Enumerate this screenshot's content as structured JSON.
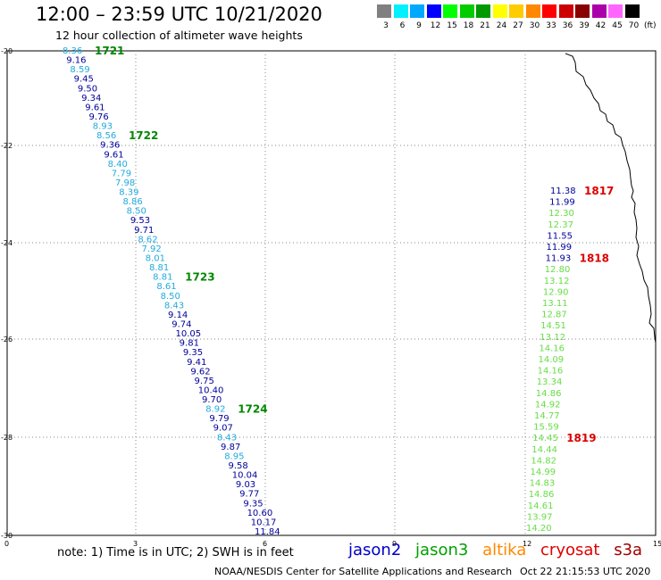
{
  "title": "12:00 – 23:59 UTC 10/21/2020",
  "subtitle": "12 hour collection of altimeter wave heights",
  "legend": {
    "labels": [
      "3",
      "6",
      "9",
      "12",
      "15",
      "18",
      "21",
      "24",
      "27",
      "30",
      "33",
      "36",
      "39",
      "42",
      "45",
      "70"
    ],
    "colors": [
      "#808080",
      "#00f0ff",
      "#00a8ff",
      "#0000ff",
      "#00ff00",
      "#00cc00",
      "#009900",
      "#ffff00",
      "#ffcc00",
      "#ff8800",
      "#ff0000",
      "#cc0000",
      "#880000",
      "#aa00aa",
      "#ff66ff",
      "#000000"
    ],
    "unit": "(ft)"
  },
  "axes": {
    "x_ticks": [
      "0",
      "3",
      "6",
      "9",
      "12",
      "15"
    ],
    "y_ticks": [
      "-20",
      "-22",
      "-24",
      "-26",
      "-28",
      "-30"
    ]
  },
  "colors": {
    "jason2": "#0000c8",
    "jason3": "#00a000",
    "altika": "#ff8800",
    "cryosat": "#e00000",
    "s3a": "#a00000",
    "swh_dark": "#000099",
    "swh_light": "#22aadd",
    "swh_green": "#66dd44",
    "track_label": "#008800",
    "time_label": "#dd0000"
  },
  "track_left": {
    "values": [
      "8.36",
      "9.16",
      "8.59",
      "9.45",
      "9.50",
      "9.34",
      "9.61",
      "9.76",
      "8.93",
      "8.56",
      "9.36",
      "9.61",
      "8.40",
      "7.79",
      "7.98",
      "8.39",
      "8.86",
      "8.50",
      "9.53",
      "9.71",
      "8.62",
      "7.92",
      "8.01",
      "8.81",
      "8.81",
      "8.61",
      "8.50",
      "8.43",
      "9.14",
      "9.74",
      "10.05",
      "9.81",
      "9.35",
      "9.41",
      "9.62",
      "9.75",
      "10.40",
      "9.70",
      "8.92",
      "9.79",
      "9.07",
      "8.43",
      "9.87",
      "8.95",
      "9.58",
      "10.04",
      "9.03",
      "9.77",
      "9.35",
      "10.60",
      "10.17",
      "11.84"
    ],
    "labels": [
      {
        "text": "1721",
        "index": 0
      },
      {
        "text": "1722",
        "index": 9
      },
      {
        "text": "1723",
        "index": 24
      },
      {
        "text": "1724",
        "index": 38
      }
    ]
  },
  "track_right": {
    "values": [
      "11.38",
      "11.99",
      "12.30",
      "12.37",
      "11.55",
      "11.99",
      "11.93",
      "12.80",
      "13.12",
      "12.90",
      "13.11",
      "12.87",
      "14.51",
      "13.12",
      "14.16",
      "14.09",
      "14.16",
      "13.34",
      "14.86",
      "14.92",
      "14.77",
      "15.59",
      "14.45",
      "14.44",
      "14.82",
      "14.99",
      "14.83",
      "14.86",
      "14.61",
      "13.97",
      "14.20"
    ],
    "labels": [
      {
        "text": "1817",
        "index": 0
      },
      {
        "text": "1818",
        "index": 6
      },
      {
        "text": "1819",
        "index": 22
      }
    ]
  },
  "note": "note:  1) Time is in UTC;  2) SWH is in feet",
  "satellites": [
    "jason2",
    "jason3",
    "altika",
    "cryosat",
    "s3a"
  ],
  "footer_source": "NOAA/NESDIS Center for Satellite Applications and Research",
  "footer_time": "Oct 22 21:15:53 UTC 2020"
}
